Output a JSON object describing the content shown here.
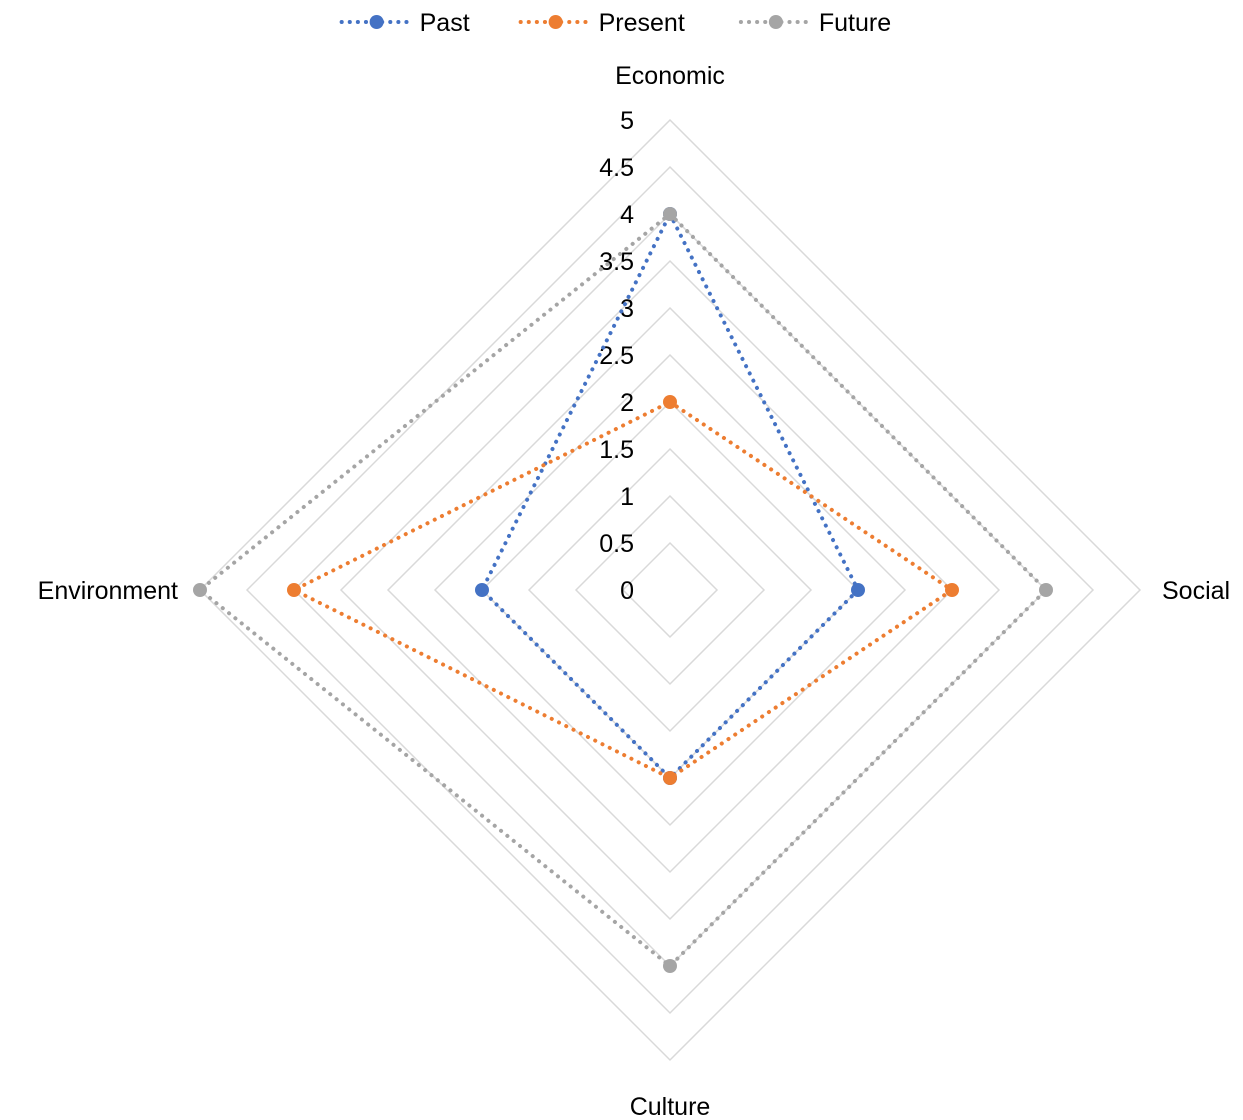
{
  "chart_data": {
    "type": "radar",
    "title": "",
    "axes": [
      "Economic",
      "Social",
      "Culture",
      "Environment"
    ],
    "scale": {
      "min": 0,
      "max": 5,
      "step": 0.5
    },
    "tick_labels": [
      "0",
      "0.5",
      "1",
      "1.5",
      "2",
      "2.5",
      "3",
      "3.5",
      "4",
      "4.5",
      "5"
    ],
    "legend_position": "top",
    "series": [
      {
        "name": "Past",
        "color": "#4472C4",
        "values": [
          4,
          2,
          2,
          2
        ]
      },
      {
        "name": "Present",
        "color": "#ED7D31",
        "values": [
          2,
          3,
          2,
          4
        ]
      },
      {
        "name": "Future",
        "color": "#A5A5A5",
        "values": [
          4,
          4,
          4,
          5
        ]
      }
    ],
    "line_style": "dotted",
    "grid": true
  }
}
